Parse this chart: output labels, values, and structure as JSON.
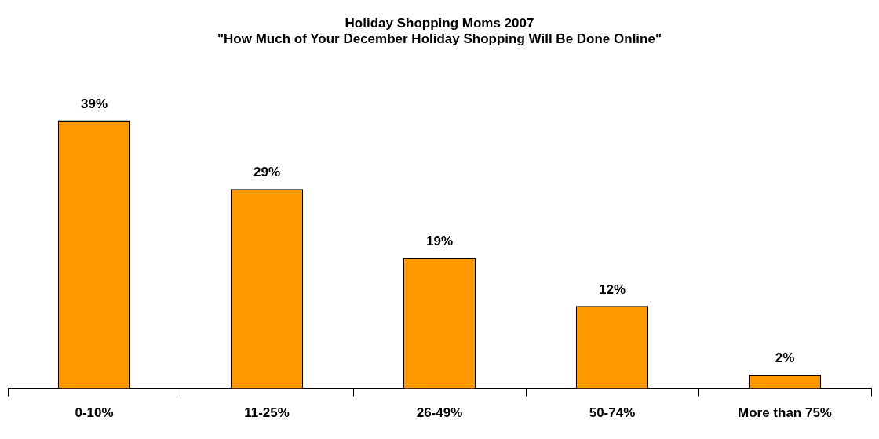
{
  "chart_data": {
    "type": "bar",
    "title": "Holiday Shopping Moms 2007",
    "subtitle": "\"How Much of Your December Holiday Shopping Will Be Done Online\"",
    "categories": [
      "0-10%",
      "11-25%",
      "26-49%",
      "50-74%",
      "More than 75%"
    ],
    "values": [
      39,
      29,
      19,
      12,
      2
    ],
    "value_labels": [
      "39%",
      "29%",
      "19%",
      "12%",
      "2%"
    ],
    "color": "#ff9900",
    "legend": false
  }
}
